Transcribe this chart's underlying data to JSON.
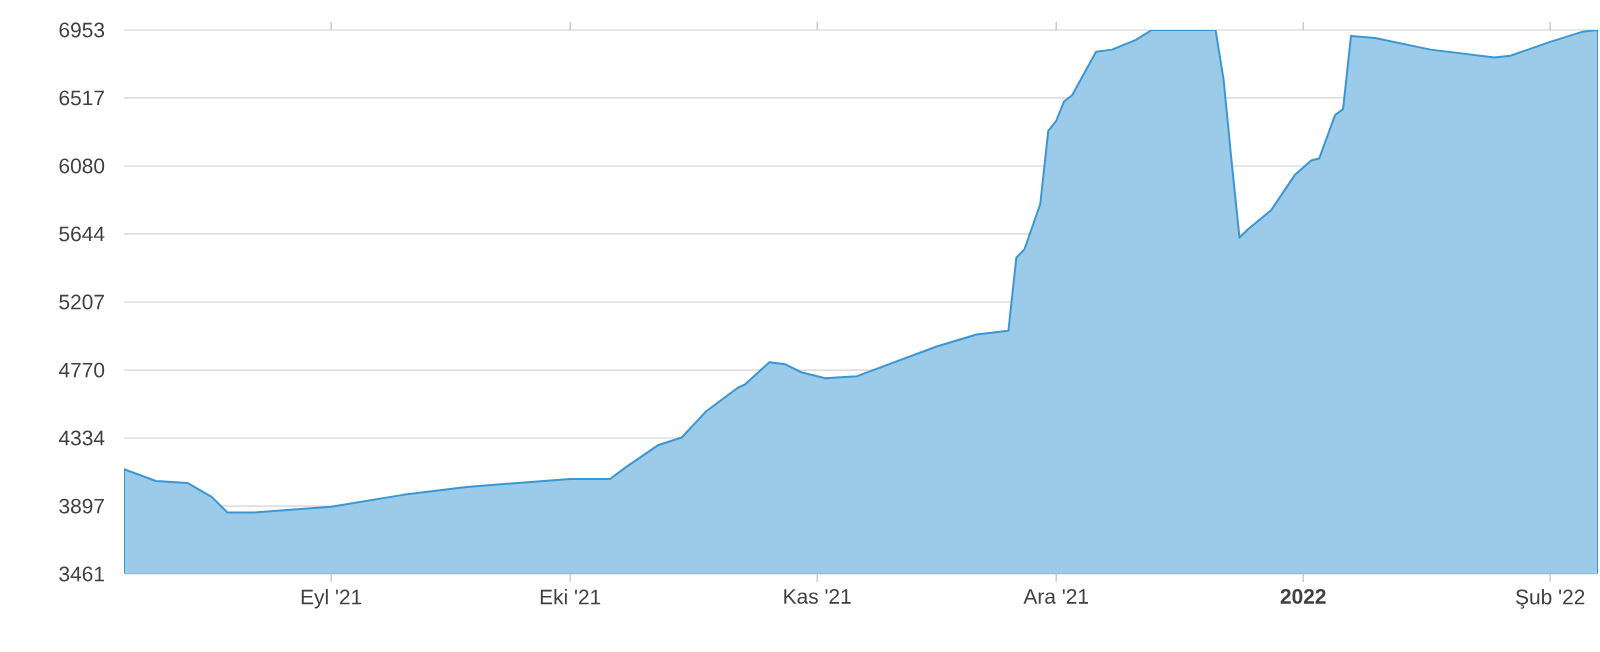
{
  "chart_data": {
    "type": "area",
    "color": "#3a97d4",
    "x": [
      "2021-08-06",
      "2021-08-10",
      "2021-08-14",
      "2021-08-17",
      "2021-08-19",
      "2021-08-22",
      "2021-09-01",
      "2021-09-10",
      "2021-09-18",
      "2021-10-01",
      "2021-10-06",
      "2021-10-08",
      "2021-10-12",
      "2021-10-15",
      "2021-10-18",
      "2021-10-19",
      "2021-10-22",
      "2021-10-23",
      "2021-10-26",
      "2021-10-28",
      "2021-10-30",
      "2021-11-02",
      "2021-11-06",
      "2021-11-16",
      "2021-11-21",
      "2021-11-25",
      "2021-11-26",
      "2021-11-27",
      "2021-11-29",
      "2021-11-30",
      "2021-12-01",
      "2021-12-02",
      "2021-12-03",
      "2021-12-06",
      "2021-12-08",
      "2021-12-11",
      "2021-12-13",
      "2021-12-21",
      "2021-12-22",
      "2021-12-23",
      "2021-12-24",
      "2021-12-25",
      "2021-12-28",
      "2021-12-31",
      "2022-01-02",
      "2022-01-03",
      "2022-01-05",
      "2022-01-06",
      "2022-01-07",
      "2022-01-10",
      "2022-01-17",
      "2022-01-25",
      "2022-01-27",
      "2022-02-01",
      "2022-02-05",
      "2022-02-07"
    ],
    "values": [
      4134,
      4058,
      4045,
      3956,
      3855,
      3855,
      3893,
      3969,
      4020,
      4071,
      4071,
      4147,
      4287,
      4337,
      4502,
      4541,
      4655,
      4680,
      4820,
      4807,
      4756,
      4718,
      4731,
      4921,
      4998,
      5023,
      5493,
      5544,
      5836,
      6306,
      6369,
      6496,
      6534,
      6814,
      6827,
      6890,
      6953,
      6953,
      6636,
      6115,
      5620,
      5671,
      5798,
      6026,
      6115,
      6128,
      6407,
      6445,
      6915,
      6902,
      6827,
      6776,
      6788,
      6877,
      6941,
      6953
    ],
    "xlim": [
      "2021-08-06",
      "2022-02-07"
    ],
    "xticks": [
      {
        "value": "2021-09-01",
        "label": "Eyl '21"
      },
      {
        "value": "2021-10-01",
        "label": "Eki '21"
      },
      {
        "value": "2021-11-01",
        "label": "Kas '21"
      },
      {
        "value": "2021-12-01",
        "label": "Ara '21"
      },
      {
        "value": "2022-01-01",
        "label": "**2022**"
      },
      {
        "value": "2022-02-01",
        "label": "Şub '22"
      }
    ],
    "ylim": [
      3461,
      6953
    ],
    "yticks": [
      3461,
      3897,
      4334,
      4770,
      5207,
      5644,
      6080,
      6517,
      6953
    ],
    "grid": "y"
  }
}
